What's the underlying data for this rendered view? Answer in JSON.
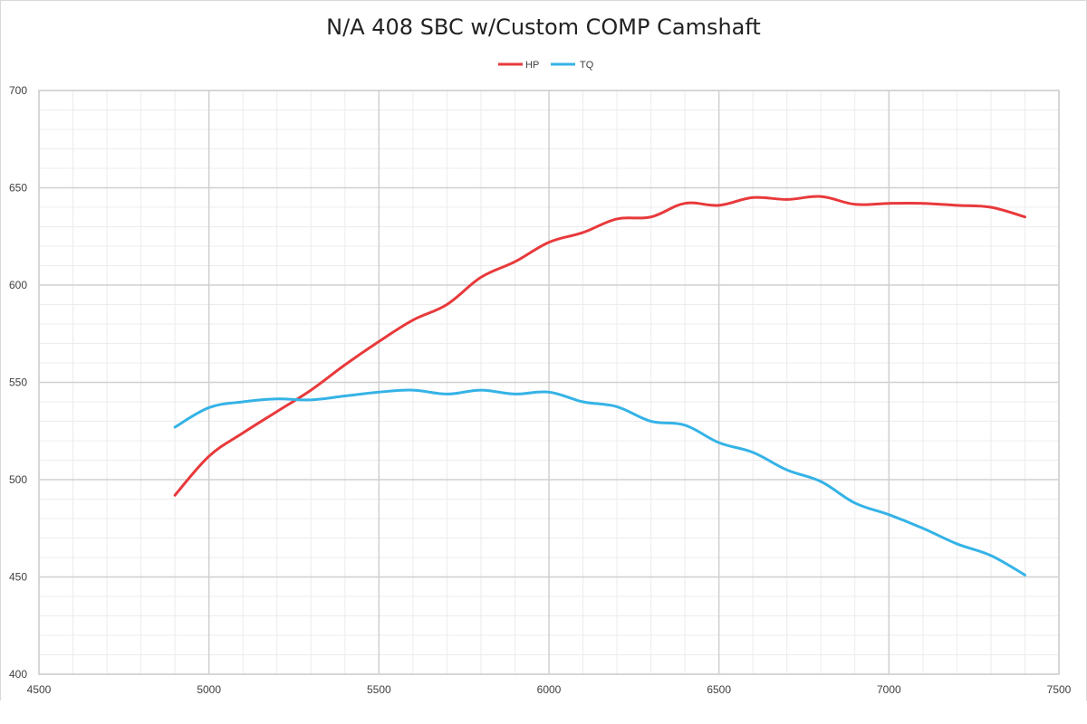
{
  "chart_data": {
    "type": "line",
    "title": "N/A 408 SBC w/Custom COMP Camshaft",
    "xlabel": "",
    "ylabel": "",
    "xlim": [
      4500,
      7500
    ],
    "ylim": [
      400,
      700
    ],
    "x_ticks": [
      "4500",
      "5000",
      "5500",
      "6000",
      "6500",
      "7000",
      "7500"
    ],
    "y_ticks": [
      "400",
      "450",
      "500",
      "550",
      "600",
      "650",
      "700"
    ],
    "x_minor_step": 100,
    "y_minor_step": 10,
    "grid": true,
    "legend_position": "top-center",
    "x": [
      4900,
      5000,
      5100,
      5200,
      5300,
      5400,
      5500,
      5600,
      5700,
      5800,
      5900,
      6000,
      6100,
      6200,
      6300,
      6400,
      6500,
      6600,
      6700,
      6800,
      6900,
      7000,
      7100,
      7200,
      7300,
      7400
    ],
    "series": [
      {
        "name": "HP",
        "color": "#e8393b",
        "values": [
          492,
          512,
          524,
          535,
          546,
          559,
          571,
          582,
          590,
          604,
          612,
          622,
          627,
          634,
          635,
          642,
          641,
          645,
          644,
          645.5,
          641.5,
          642,
          642,
          641,
          640,
          635
        ]
      },
      {
        "name": "TQ",
        "color": "#35b3e6",
        "values": [
          527,
          537,
          540,
          541.5,
          541,
          543,
          545,
          546,
          544,
          546,
          544,
          545,
          540,
          537.5,
          530,
          528,
          519,
          514,
          505,
          499,
          488,
          482,
          475,
          467,
          461,
          451
        ]
      }
    ]
  }
}
